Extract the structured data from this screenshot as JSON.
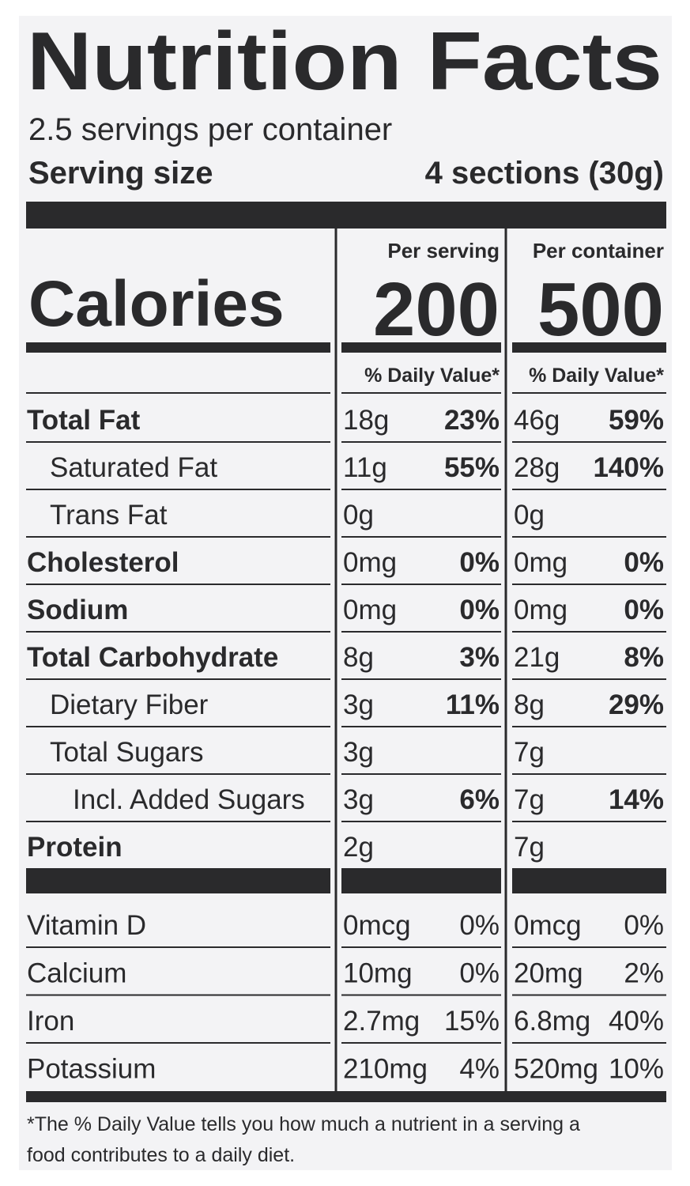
{
  "title": "Nutrition Facts",
  "servings": "2.5 servings per container",
  "serving_size": {
    "label": "Serving size",
    "value": "4 sections (30g)"
  },
  "calories": {
    "label": "Calories",
    "columns": [
      {
        "header": "Per serving",
        "value": 200
      },
      {
        "header": "Per container",
        "value": 500
      }
    ]
  },
  "dv_header": [
    "% Daily Value*",
    "% Daily Value*"
  ],
  "nutrients": [
    {
      "name": "Total Fat",
      "bold": true,
      "indent": 0,
      "serving": {
        "amount": "18g",
        "dv": "23%"
      },
      "container": {
        "amount": "46g",
        "dv": "59%"
      }
    },
    {
      "name": "Saturated Fat",
      "bold": false,
      "indent": 1,
      "serving": {
        "amount": "11g",
        "dv": "55%"
      },
      "container": {
        "amount": "28g",
        "dv": "140%"
      }
    },
    {
      "name": "Trans Fat",
      "bold": false,
      "indent": 1,
      "serving": {
        "amount": "0g"
      },
      "container": {
        "amount": "0g"
      }
    },
    {
      "name": "Cholesterol",
      "bold": true,
      "indent": 0,
      "serving": {
        "amount": "0mg",
        "dv": "0%"
      },
      "container": {
        "amount": "0mg",
        "dv": "0%"
      }
    },
    {
      "name": "Sodium",
      "bold": true,
      "indent": 0,
      "serving": {
        "amount": "0mg",
        "dv": "0%"
      },
      "container": {
        "amount": "0mg",
        "dv": "0%"
      }
    },
    {
      "name": "Total Carbohydrate",
      "bold": true,
      "indent": 0,
      "serving": {
        "amount": "8g",
        "dv": "3%"
      },
      "container": {
        "amount": "21g",
        "dv": "8%"
      }
    },
    {
      "name": "Dietary Fiber",
      "bold": false,
      "indent": 1,
      "serving": {
        "amount": "3g",
        "dv": "11%"
      },
      "container": {
        "amount": "8g",
        "dv": "29%"
      }
    },
    {
      "name": "Total Sugars",
      "bold": false,
      "indent": 1,
      "serving": {
        "amount": "3g"
      },
      "container": {
        "amount": "7g"
      }
    },
    {
      "name": "Incl. Added Sugars",
      "bold": false,
      "indent": 2,
      "serving": {
        "amount": "3g",
        "dv": "6%"
      },
      "container": {
        "amount": "7g",
        "dv": "14%"
      }
    },
    {
      "name": "Protein",
      "bold": true,
      "indent": 0,
      "serving": {
        "amount": "2g"
      },
      "container": {
        "amount": "7g"
      }
    }
  ],
  "vitamins": [
    {
      "name": "Vitamin D",
      "serving": {
        "amount": "0mcg",
        "dv": "0%"
      },
      "container": {
        "amount": "0mcg",
        "dv": "0%"
      }
    },
    {
      "name": "Calcium",
      "serving": {
        "amount": "10mg",
        "dv": "0%"
      },
      "container": {
        "amount": "20mg",
        "dv": "2%"
      }
    },
    {
      "name": "Iron",
      "serving": {
        "amount": "2.7mg",
        "dv": "15%"
      },
      "container": {
        "amount": "6.8mg",
        "dv": "40%"
      }
    },
    {
      "name": "Potassium",
      "serving": {
        "amount": "210mg",
        "dv": "4%"
      },
      "container": {
        "amount": "520mg",
        "dv": "10%"
      }
    }
  ],
  "footnote": [
    "*The % Daily Value tells you how much a nutrient in a serving a",
    "food contributes to a daily diet."
  ]
}
